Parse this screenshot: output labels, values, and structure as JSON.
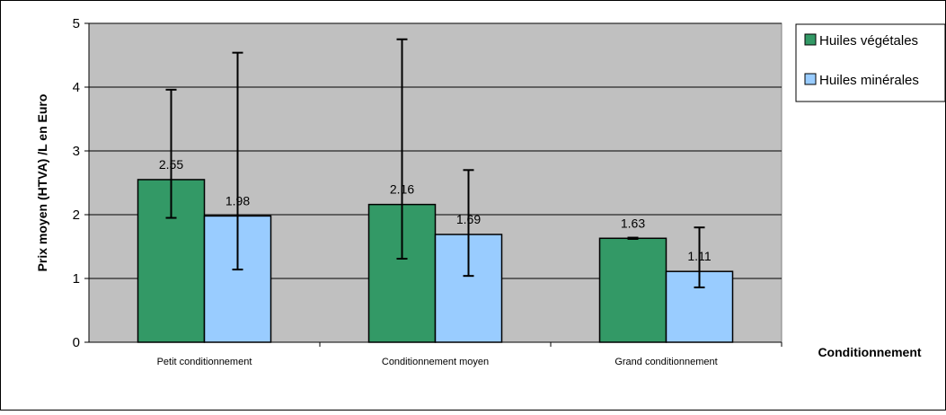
{
  "chart_data": {
    "type": "bar",
    "categories": [
      "Petit conditionnement",
      "Conditionnement moyen",
      "Grand conditionnement"
    ],
    "series": [
      {
        "name": "Huiles végétales",
        "color": "#339966",
        "values": [
          2.55,
          2.16,
          1.63
        ],
        "value_labels": [
          "2.55",
          "2.16",
          "1.63"
        ],
        "error_low": [
          1.95,
          1.31,
          1.62
        ],
        "error_high": [
          3.96,
          4.75,
          1.64
        ]
      },
      {
        "name": "Huiles minérales",
        "color": "#99CCFF",
        "values": [
          1.98,
          1.69,
          1.11
        ],
        "value_labels": [
          "1.98",
          "1.69",
          "1.11"
        ],
        "error_low": [
          1.14,
          1.04,
          0.86
        ],
        "error_high": [
          4.54,
          2.7,
          1.8
        ]
      }
    ],
    "xlabel": "Conditionnement",
    "ylabel": "Prix moyen (HTVA) /L en Euro",
    "ylim": [
      0,
      5
    ],
    "yticks": [
      "0",
      "1",
      "2",
      "3",
      "4",
      "5"
    ],
    "grid": true,
    "plot_background": "#C0C0C0",
    "legend": "top-right"
  }
}
